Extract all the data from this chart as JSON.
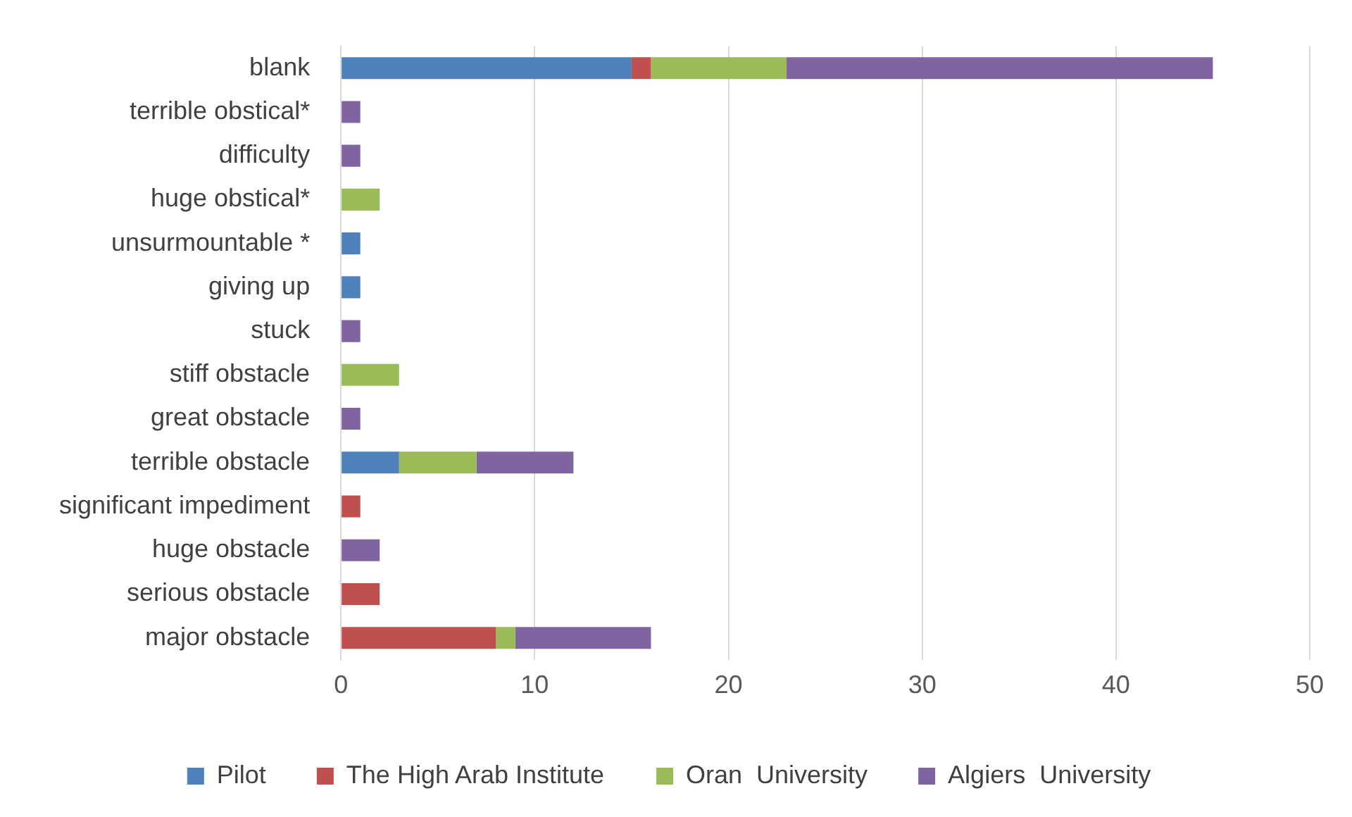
{
  "chart_data": {
    "type": "bar",
    "orientation": "horizontal",
    "stacked": true,
    "categories": [
      "blank",
      "terrible obstical*",
      "difficulty",
      "huge obstical*",
      "unsurmountable *",
      "giving up",
      "stuck",
      "stiff obstacle",
      "great obstacle",
      "terrible obstacle",
      "significant impediment",
      "huge obstacle",
      "serious obstacle",
      "major obstacle"
    ],
    "series": [
      {
        "name": "Pilot",
        "color": "#4f81bd",
        "values": [
          15,
          null,
          null,
          null,
          1,
          1,
          null,
          null,
          null,
          3,
          null,
          null,
          null,
          null
        ]
      },
      {
        "name": "The High Arab Institute",
        "color": "#c0504d",
        "values": [
          1,
          null,
          null,
          null,
          null,
          null,
          null,
          null,
          null,
          null,
          1,
          null,
          2,
          8
        ]
      },
      {
        "name": "Oran  University",
        "color": "#9bbb59",
        "values": [
          7,
          null,
          null,
          2,
          null,
          null,
          null,
          3,
          null,
          4,
          null,
          null,
          null,
          1
        ]
      },
      {
        "name": "Algiers  University",
        "color": "#8064a2",
        "values": [
          22,
          1,
          1,
          null,
          null,
          null,
          1,
          null,
          1,
          5,
          null,
          2,
          null,
          7
        ]
      }
    ],
    "xlim": [
      0,
      50
    ],
    "xticks": [
      0,
      10,
      20,
      30,
      40,
      50
    ],
    "grid": "x",
    "legend": "bottom"
  }
}
